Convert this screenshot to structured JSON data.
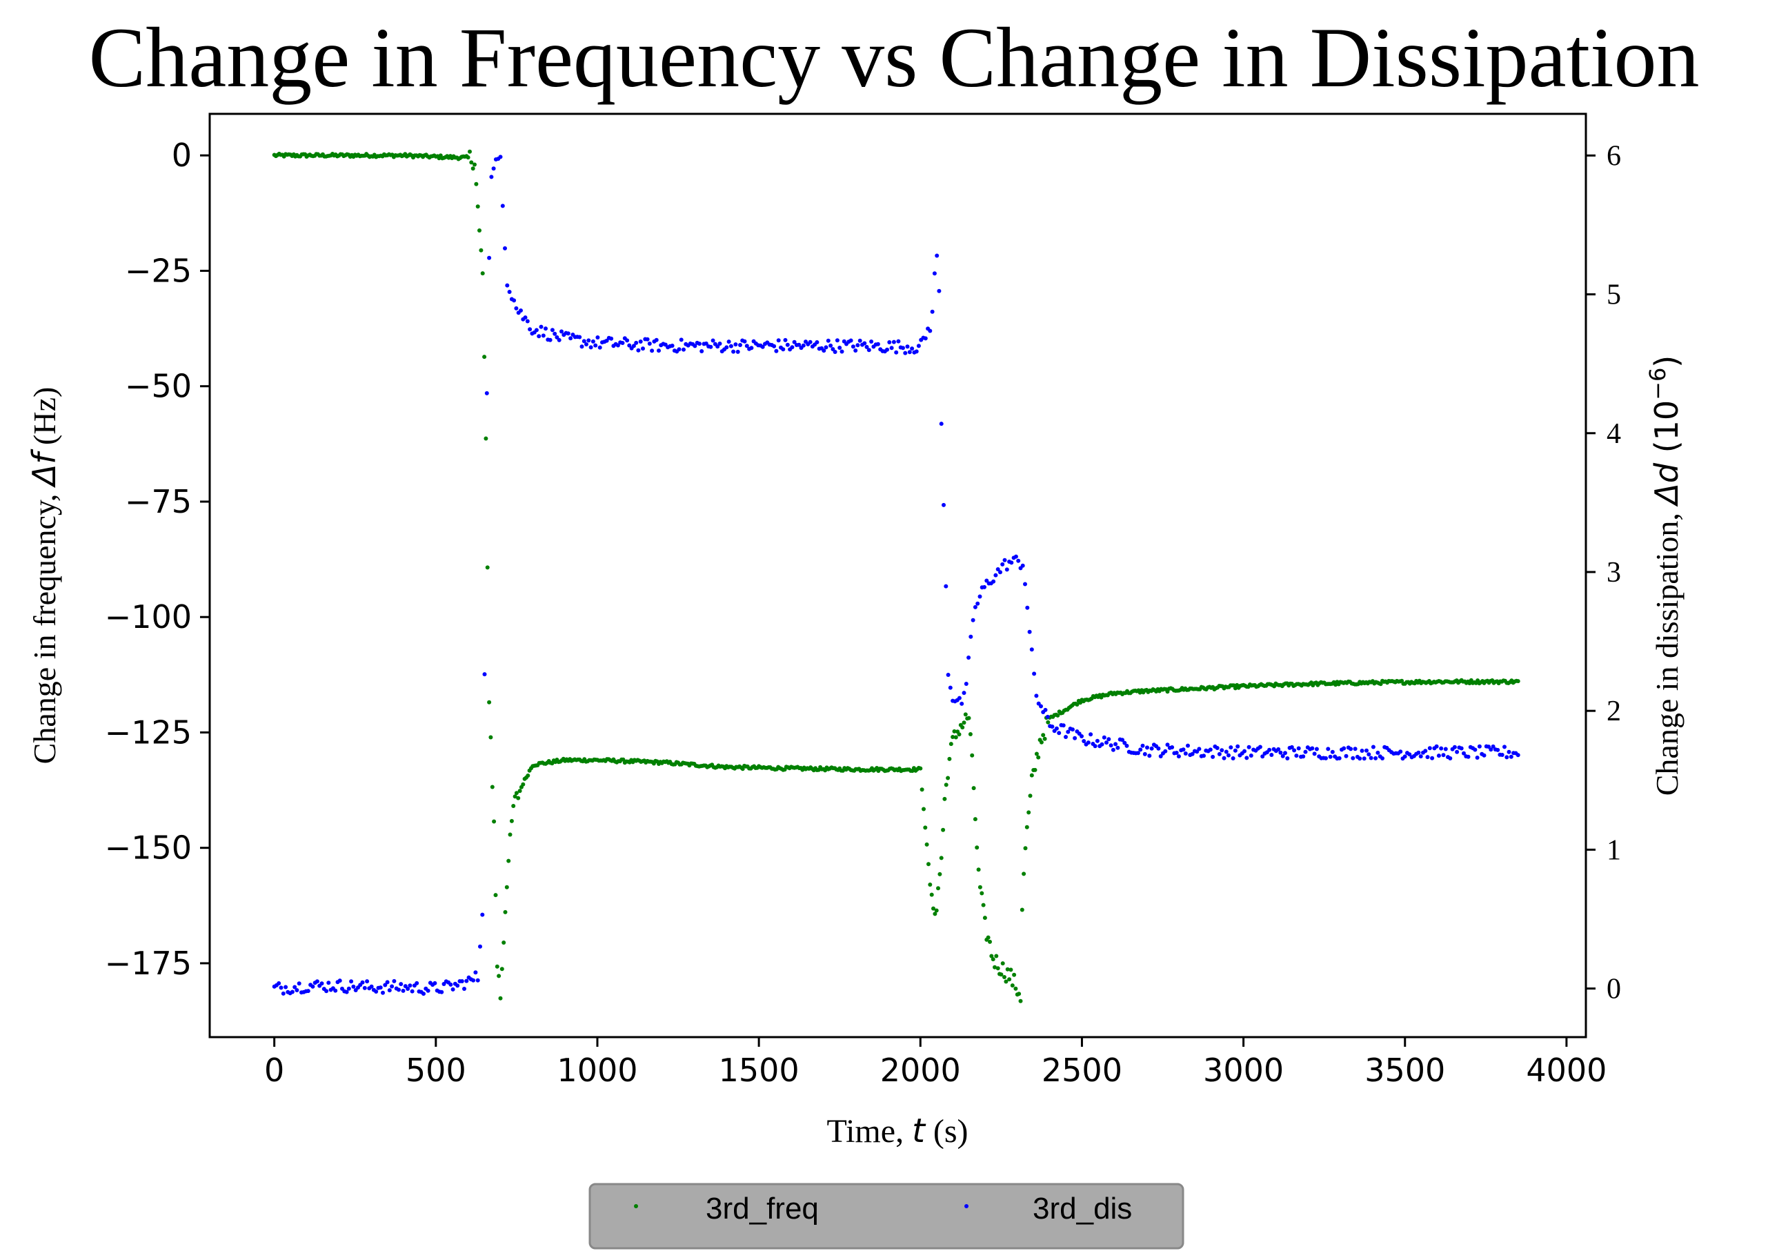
{
  "chart_data": {
    "type": "scatter",
    "title": "Change in Frequency vs Change in Dissipation",
    "xlabel": "Time, t (s)",
    "xlabel_parts": [
      "Time, ",
      "t",
      " (s)"
    ],
    "ylabel_left": "Change in frequency, Δf (Hz)",
    "ylabel_left_parts": [
      "Change in frequency, ",
      "Δf",
      " (Hz)"
    ],
    "ylabel_right": "Change in dissipation, Δd (10⁻⁶)",
    "ylabel_right_parts": [
      "Change in dissipation, ",
      "Δd",
      " (10",
      "−6",
      ")"
    ],
    "xlim": [
      -200,
      4060
    ],
    "ylim_left": [
      -191,
      9
    ],
    "ylim_right": [
      -0.35,
      6.3
    ],
    "xticks": [
      0,
      500,
      1000,
      1500,
      2000,
      2500,
      3000,
      3500,
      4000
    ],
    "yticks_left": [
      0,
      -25,
      -50,
      -75,
      -100,
      -125,
      -150,
      -175
    ],
    "yticks_right": [
      0,
      1,
      2,
      3,
      4,
      5,
      6
    ],
    "legend_position": "bottom-center (below plot)",
    "grid": false,
    "series": [
      {
        "name": "3rd_freq",
        "color": "#008000",
        "axis": "left",
        "x": [
          0,
          100,
          200,
          300,
          400,
          500,
          600,
          620,
          635,
          645,
          655,
          665,
          680,
          690,
          700,
          720,
          740,
          770,
          800,
          850,
          900,
          1000,
          1200,
          1400,
          1600,
          1800,
          2000,
          2035,
          2050,
          2065,
          2075,
          2085,
          2100,
          2120,
          2150,
          2165,
          2180,
          2200,
          2225,
          2250,
          2280,
          2310,
          2315,
          2325,
          2345,
          2370,
          2400,
          2450,
          2500,
          2600,
          2700,
          2800,
          3000,
          3200,
          3400,
          3600,
          3800,
          3850
        ],
        "y": [
          0,
          0,
          0,
          0,
          0,
          -0.3,
          -0.5,
          -1,
          -17,
          -25.5,
          -63,
          -117,
          -145,
          -175,
          -182,
          -157,
          -141,
          -136,
          -132,
          -131.5,
          -131,
          -131,
          -131.5,
          -132.5,
          -132.8,
          -133,
          -133,
          -162,
          -163,
          -152,
          -140,
          -133,
          -127,
          -124,
          -121.5,
          -137,
          -156,
          -167,
          -174,
          -176,
          -178,
          -182,
          -163,
          -150,
          -136,
          -127,
          -122,
          -120,
          -118,
          -116.5,
          -116,
          -115.7,
          -115,
          -114.5,
          -114.2,
          -114,
          -114,
          -114
        ]
      },
      {
        "name": "3rd_dis",
        "color": "#0000ff",
        "axis": "right",
        "x": [
          0,
          100,
          200,
          300,
          400,
          500,
          560,
          600,
          630,
          645,
          655,
          660,
          670,
          680,
          690,
          700,
          720,
          750,
          800,
          900,
          1000,
          1200,
          1400,
          1600,
          1800,
          2000,
          2035,
          2045,
          2055,
          2065,
          2075,
          2085,
          2100,
          2120,
          2140,
          2160,
          2180,
          2200,
          2220,
          2240,
          2260,
          2280,
          2300,
          2320,
          2340,
          2360,
          2400,
          2500,
          2700,
          3000,
          3300,
          3600,
          3850
        ],
        "y": [
          0,
          0.02,
          0.02,
          0.01,
          0.01,
          0,
          0.02,
          0.05,
          0.08,
          0.6,
          3.45,
          4.8,
          5.8,
          5.9,
          5.95,
          6.0,
          5.1,
          4.9,
          4.75,
          4.68,
          4.65,
          4.63,
          4.63,
          4.63,
          4.63,
          4.62,
          4.8,
          5.15,
          5.4,
          4.05,
          3.3,
          2.3,
          2.1,
          2.05,
          2.1,
          2.65,
          2.8,
          2.9,
          2.95,
          3.0,
          3.05,
          3.07,
          3.08,
          3.05,
          2.5,
          2.1,
          1.9,
          1.8,
          1.72,
          1.7,
          1.7,
          1.7,
          1.7
        ]
      }
    ]
  }
}
